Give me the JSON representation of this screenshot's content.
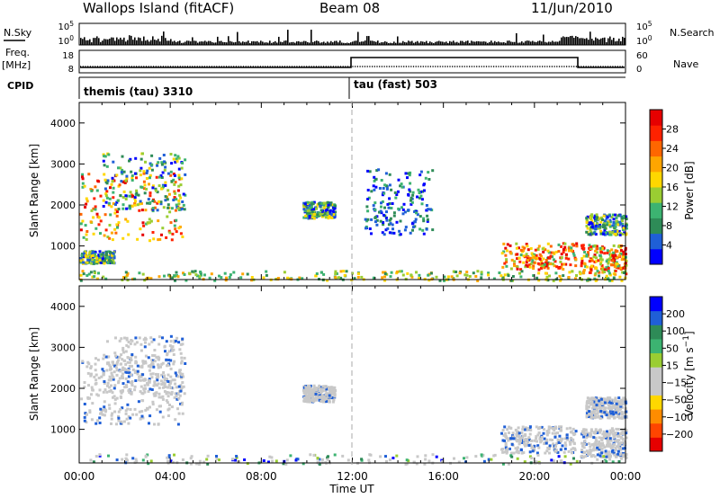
{
  "header": {
    "station": "Wallops Island (fitACF)",
    "beam": "Beam 08",
    "date": "11/Jun/2010"
  },
  "left_labels": {
    "nsky": "N.Sky",
    "freq_line1": "Freq.",
    "freq_line2": "[MHz]",
    "cpid": "CPID"
  },
  "right_labels": {
    "nsearch": "N.Search",
    "nave": "Nave"
  },
  "noise_panel": {
    "left_ticks": [
      "10^5",
      "10^0"
    ],
    "right_ticks": [
      "10^5",
      "10^0"
    ]
  },
  "freq_panel": {
    "left_ticks": [
      "18",
      "8"
    ],
    "right_ticks": [
      "60",
      "0"
    ]
  },
  "cpid_panel": {
    "segments": [
      {
        "label": "themis (tau) 3310",
        "start_hour": 0
      },
      {
        "label": "tau (fast) 503",
        "start_hour": 12.0
      }
    ]
  },
  "x_axis": {
    "label": "Time UT",
    "ticks": [
      "00:00",
      "04:00",
      "08:00",
      "12:00",
      "16:00",
      "20:00",
      "00:00"
    ]
  },
  "chart_data": [
    {
      "type": "heatmap",
      "title": "",
      "xlabel": "Time UT",
      "ylabel": "Slant Range [km]",
      "xlim": [
        0,
        24
      ],
      "ylim": [
        180,
        4500
      ],
      "yticks": [
        "1000",
        "2000",
        "3000",
        "4000"
      ],
      "colorbar": {
        "label": "Power [dB]",
        "ticks": [
          "28",
          "24",
          "20",
          "16",
          "12",
          "8",
          "4"
        ],
        "range": [
          0,
          31
        ],
        "colors": [
          "#0000ff",
          "#1f5fd7",
          "#2e8b57",
          "#3cb371",
          "#9acd32",
          "#ffd700",
          "#ffa500",
          "#ff6600",
          "#ff2200",
          "#e60000"
        ]
      },
      "regions": [
        {
          "t_start": 0.0,
          "t_end": 4.5,
          "range_start": 1150,
          "range_end": 2800,
          "level": "high"
        },
        {
          "t_start": 1.0,
          "t_end": 4.6,
          "range_start": 1900,
          "range_end": 3300,
          "level": "medium"
        },
        {
          "t_start": 0.0,
          "t_end": 1.5,
          "range_start": 600,
          "range_end": 900,
          "level": "medium"
        },
        {
          "t_start": 9.8,
          "t_end": 11.2,
          "range_start": 1700,
          "range_end": 2100,
          "level": "medium"
        },
        {
          "t_start": 12.5,
          "t_end": 15.5,
          "range_start": 1300,
          "range_end": 2900,
          "level": "low"
        },
        {
          "t_start": 18.5,
          "t_end": 21.8,
          "range_start": 450,
          "range_end": 1100,
          "level": "high"
        },
        {
          "t_start": 22.0,
          "t_end": 24.0,
          "range_start": 350,
          "range_end": 1050,
          "level": "high"
        },
        {
          "t_start": 22.2,
          "t_end": 24.0,
          "range_start": 1300,
          "range_end": 1800,
          "level": "medium"
        },
        {
          "t_start": 0.0,
          "t_end": 24.0,
          "range_start": 180,
          "range_end": 420,
          "level": "ground"
        }
      ]
    },
    {
      "type": "heatmap",
      "title": "",
      "xlabel": "Time UT",
      "ylabel": "Slant Range [km]",
      "xlim": [
        0,
        24
      ],
      "ylim": [
        180,
        4500
      ],
      "yticks": [
        "1000",
        "2000",
        "3000",
        "4000"
      ],
      "colorbar": {
        "label": "Velocity [m s^-1]",
        "ticks": [
          "200",
          "100",
          "50",
          "15",
          "-15",
          "-50",
          "-100",
          "-200"
        ],
        "range": [
          -250,
          250
        ],
        "colors": [
          "#e60000",
          "#ff4500",
          "#ff8c00",
          "#ffd700",
          "#c8c8c8",
          "#c8c8c8",
          "#9acd32",
          "#3cb371",
          "#2e8b57",
          "#1f5fd7",
          "#0000ff"
        ]
      },
      "regions": [
        {
          "t_start": 0.0,
          "t_end": 4.5,
          "range_start": 1150,
          "range_end": 2800,
          "level": "ground"
        },
        {
          "t_start": 1.0,
          "t_end": 4.6,
          "range_start": 1900,
          "range_end": 3300,
          "level": "ground"
        },
        {
          "t_start": 9.8,
          "t_end": 11.2,
          "range_start": 1700,
          "range_end": 2100,
          "level": "ground"
        },
        {
          "t_start": 18.5,
          "t_end": 21.8,
          "range_start": 450,
          "range_end": 1100,
          "level": "ground"
        },
        {
          "t_start": 22.0,
          "t_end": 24.0,
          "range_start": 350,
          "range_end": 1050,
          "level": "ground"
        },
        {
          "t_start": 22.2,
          "t_end": 24.0,
          "range_start": 1300,
          "range_end": 1800,
          "level": "ground"
        },
        {
          "t_start": 0.0,
          "t_end": 24.0,
          "range_start": 180,
          "range_end": 420,
          "level": "low"
        }
      ]
    }
  ]
}
